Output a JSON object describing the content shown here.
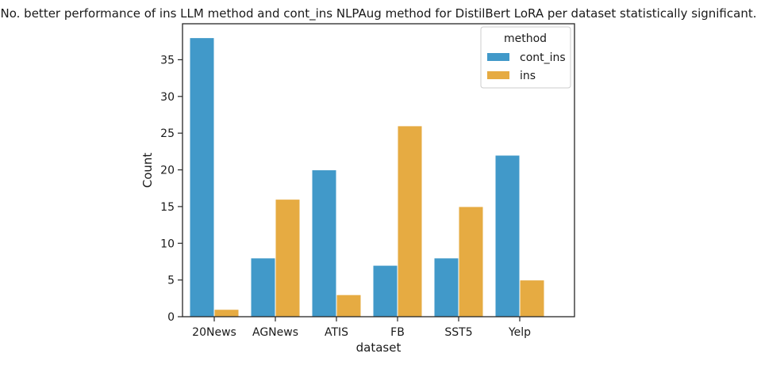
{
  "chart_data": {
    "type": "bar",
    "title": "No. better performance of ins LLM method and cont_ins NLPAug method for DistilBert LoRA per dataset statistically significant.",
    "xlabel": "dataset",
    "ylabel": "Count",
    "categories": [
      "20News",
      "AGNews",
      "ATIS",
      "FB",
      "SST5",
      "Yelp"
    ],
    "series": [
      {
        "name": "cont_ins",
        "color": "#4199c9",
        "values": [
          38,
          8,
          20,
          7,
          8,
          22
        ]
      },
      {
        "name": "ins",
        "color": "#e6ab42",
        "values": [
          1,
          16,
          3,
          26,
          15,
          5
        ]
      }
    ],
    "ylim": [
      0,
      39.9
    ],
    "yticks": [
      0,
      5,
      10,
      15,
      20,
      25,
      30,
      35
    ],
    "grid": false,
    "legend": {
      "title": "method",
      "placement": "top-right"
    }
  }
}
